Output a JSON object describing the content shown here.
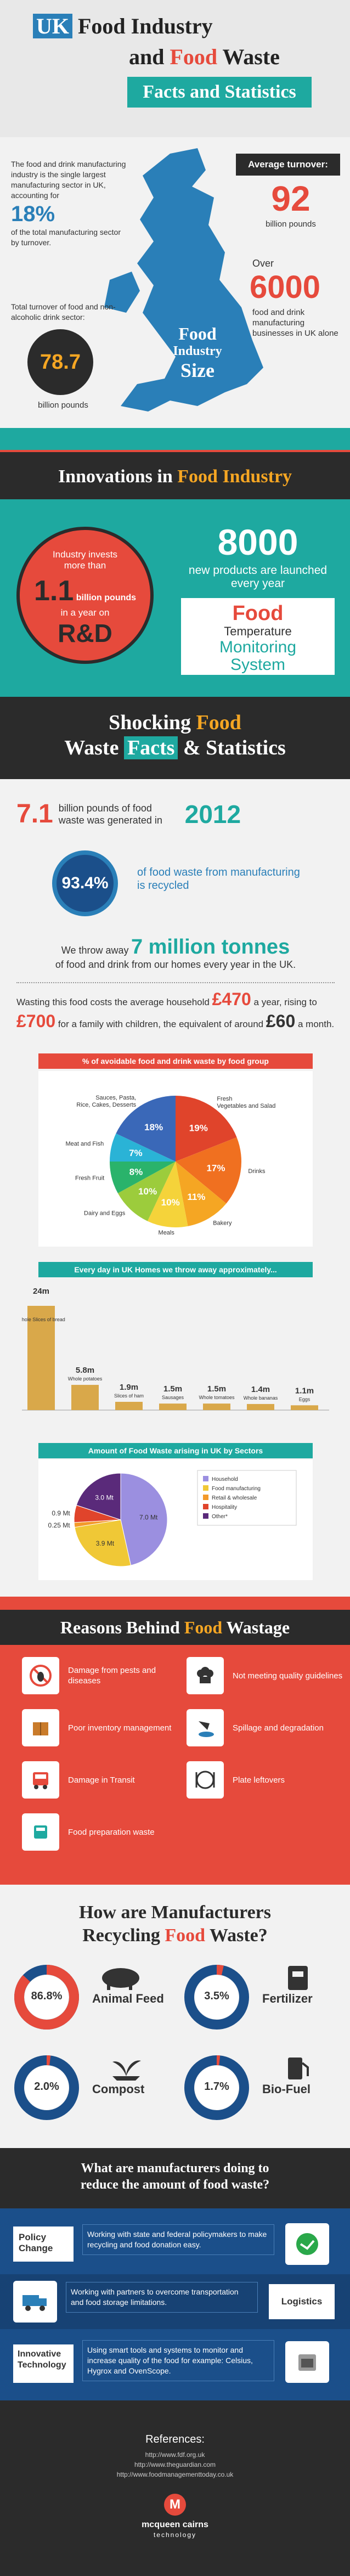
{
  "title": {
    "line1_a": "UK",
    "line1_b": " Food Industry",
    "line2_a": "and ",
    "line2_b": "Food",
    "line2_c": " Waste",
    "line3": "Facts and Statistics"
  },
  "industry": {
    "left_text1": "The food and drink manufacturing industry is the single largest manufacturing sector in UK, accounting for",
    "pct": "18%",
    "left_text2": "of the total manufacturing sector by turnover.",
    "turnover_label": "Total turnover of food and non-alcoholic drink sector:",
    "turnover_value": "78.7",
    "turnover_unit": "billion pounds",
    "avg_label": "Average turnover:",
    "avg_value": "92",
    "avg_unit": "billion pounds",
    "over": "Over",
    "businesses_value": "6000",
    "businesses_text": "food and drink manufacturing businesses in UK alone",
    "map_title_1": "Food",
    "map_title_2": "Industry",
    "map_title_3": "Size"
  },
  "innovations": {
    "heading_a": "Innovations in ",
    "heading_b": "Food Industry",
    "invest_text": "Industry invests more than",
    "invest_value": "1.1",
    "invest_unit": "billion pounds",
    "invest_suffix": "in a year on",
    "invest_target": "R&D",
    "products_value": "8000",
    "products_text": "new products are launched every year",
    "system_1": "Food",
    "system_2": "Temperature",
    "system_3": "Monitoring",
    "system_4": "System"
  },
  "shocking": {
    "heading_a": "Shocking ",
    "heading_b": "Food",
    "heading_c": "Waste ",
    "heading_d": "Facts",
    "heading_e": " & Statistics"
  },
  "waste": {
    "gen_value": "7.1",
    "gen_text": "billion pounds of food waste was generated in",
    "gen_year": "2012",
    "recycled_value": "93.4%",
    "recycled_text": "of food waste from manufacturing is recycled",
    "throw_a": "We throw away",
    "throw_value": "7 million tonnes",
    "throw_b": "of food and drink from our homes every year in the UK.",
    "cost_a": "Wasting this food costs the average household",
    "cost_v1": "£470",
    "cost_b": "a year, rising to",
    "cost_v2": "£700",
    "cost_c": "for a family with children, the equivalent of around",
    "cost_v3": "£60",
    "cost_d": "a month."
  },
  "colors": {
    "red": "#e64a3c",
    "teal": "#1ea9a0",
    "blue": "#2a7fb8",
    "dark": "#2b2b2b",
    "bar": "#d9a84a"
  },
  "chart_data": [
    {
      "type": "pie",
      "title": "% of avoidable food and drink waste by food group",
      "categories": [
        "Fresh Vegetables and Salad",
        "Drinks",
        "Bakery",
        "Meals",
        "Dairy and Eggs",
        "Fresh Fruit",
        "Meat and Fish",
        "Sauces, Pasta, Rice, Cakes, Desserts"
      ],
      "values": [
        19,
        17,
        11,
        10,
        10,
        8,
        7,
        18
      ],
      "colors": [
        "#e0442b",
        "#f07020",
        "#f5a623",
        "#f5d33a",
        "#9ccc3c",
        "#2ab36b",
        "#2ab3d6",
        "#3a68b8"
      ]
    },
    {
      "type": "bar",
      "title": "Every day in UK Homes we throw away approximately...",
      "categories": [
        "Whole Slices of bread",
        "Whole potatoes",
        "Slices of ham",
        "Sausages",
        "Whole tomatoes",
        "Whole bananas",
        "Eggs"
      ],
      "values": [
        24,
        5.8,
        1.9,
        1.5,
        1.5,
        1.4,
        1.1
      ],
      "value_labels": [
        "24m",
        "5.8m",
        "1.9m",
        "1.5m",
        "1.5m",
        "1.4m",
        "1.1m"
      ],
      "unit": "m"
    },
    {
      "type": "pie",
      "title": "Amount of Food Waste arising in UK by Sectors",
      "categories": [
        "Household",
        "Food manufacturing",
        "Retail & wholesale",
        "Hospitality",
        "Other*"
      ],
      "values": [
        7.0,
        3.9,
        0.25,
        0.9,
        3.0
      ],
      "value_labels": [
        "7.0 Mt",
        "3.9 Mt",
        "0.25 Mt",
        "0.9 Mt",
        "3.0 Mt"
      ],
      "colors": [
        "#9b8fe0",
        "#f0c836",
        "#f39a2a",
        "#e0442b",
        "#5a2a7a"
      ]
    }
  ],
  "reasons": {
    "heading_a": "Reasons Behind ",
    "heading_b": "Food",
    "heading_c": " Wastage",
    "items": [
      {
        "label": "Damage from pests and diseases"
      },
      {
        "label": "Not meeting quality guidelines"
      },
      {
        "label": "Poor inventory management"
      },
      {
        "label": "Spillage and degradation"
      },
      {
        "label": "Damage in Transit"
      },
      {
        "label": "Plate leftovers"
      },
      {
        "label": "Food preparation waste"
      }
    ]
  },
  "recycling": {
    "heading_1a": "How are Manufacturers",
    "heading_2a": "Recycling ",
    "heading_2b": "Food",
    "heading_2c": " Waste?",
    "items": [
      {
        "pct": "86.8%",
        "label": "Animal Feed",
        "value": 86.8
      },
      {
        "pct": "3.5%",
        "label": "Fertilizer",
        "value": 3.5
      },
      {
        "pct": "2.0%",
        "label": "Compost",
        "value": 2.0
      },
      {
        "pct": "1.7%",
        "label": "Bio-Fuel",
        "value": 1.7
      }
    ]
  },
  "reduce": {
    "heading_1": "What are manufacturers doing to",
    "heading_2": "reduce the amount of food waste?",
    "items": [
      {
        "tag": "Policy Change",
        "text": "Working with state and federal policymakers to make recycling and food donation easy."
      },
      {
        "tag": "Logistics",
        "text": "Working with partners to overcome transportation and food storage limitations."
      },
      {
        "tag": "Innovative Technology",
        "text": "Using smart tools and systems to monitor and increase quality of the food for example: Celsius, Hygrox and OvenScope."
      }
    ]
  },
  "footer": {
    "refs_label": "References:",
    "refs": [
      "http://www.fdf.org.uk",
      "http://www.theguardian.com",
      "http://www.foodmanagementtoday.co.uk"
    ],
    "brand": "mcqueen cairns",
    "brand_sub": "technology"
  }
}
